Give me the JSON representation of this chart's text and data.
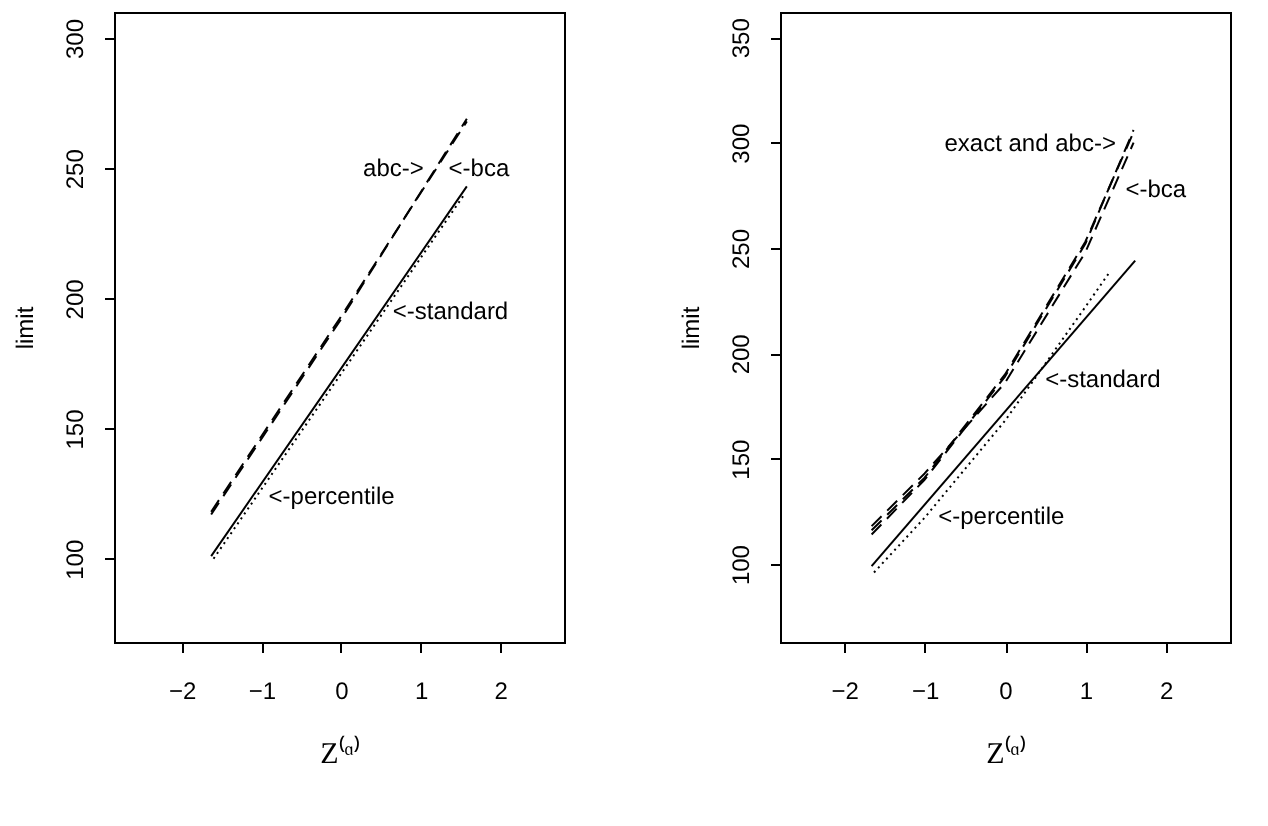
{
  "chart_data": [
    {
      "type": "line",
      "xlabel": "Z⁽ᵅ⁾",
      "ylabel": "limit",
      "xlim": [
        -2.85,
        2.8
      ],
      "ylim": [
        68,
        310
      ],
      "xticks": [
        -2,
        -1,
        0,
        1,
        2
      ],
      "yticks": [
        100,
        150,
        200,
        250,
        300
      ],
      "grid": false,
      "series": [
        {
          "color": "#000000",
          "line_style": "dashed",
          "x": [
            -1.63,
            0,
            1.58
          ],
          "values": [
            117,
            192,
            269
          ]
        },
        {
          "color": "#000000",
          "line_style": "dashed",
          "x": [
            -1.63,
            0,
            1.58
          ],
          "values": [
            118,
            193,
            268
          ]
        },
        {
          "color": "#000000",
          "line_style": "solid",
          "x": [
            -1.63,
            0,
            1.58
          ],
          "values": [
            101,
            173,
            243
          ]
        },
        {
          "color": "#000000",
          "line_style": "dotted",
          "x": [
            -1.6,
            0,
            1.55
          ],
          "values": [
            100,
            171,
            240
          ]
        }
      ],
      "annotations": [
        {
          "text": "abc->",
          "x": 1.19,
          "y": 250
        },
        {
          "text": "<-bca",
          "x": 1.2,
          "y": 250
        },
        {
          "text": "<-standard",
          "x": 0.5,
          "y": 195
        },
        {
          "text": "<-percentile",
          "x": -1.06,
          "y": 124
        }
      ]
    },
    {
      "type": "line",
      "xlabel": "Z⁽ᵅ⁾",
      "ylabel": "limit",
      "xlim": [
        -2.8,
        2.8
      ],
      "ylim": [
        63,
        362
      ],
      "xticks": [
        -2,
        -1,
        0,
        1,
        2
      ],
      "yticks": [
        100,
        150,
        200,
        250,
        300,
        350
      ],
      "grid": false,
      "series": [
        {
          "color": "#000000",
          "line_style": "dashed",
          "x": [
            -1.66,
            -1,
            0,
            1,
            1.6
          ],
          "values": [
            114,
            140,
            189,
            252,
            306
          ]
        },
        {
          "color": "#000000",
          "line_style": "dashed",
          "x": [
            -1.66,
            -1,
            0,
            1,
            1.6
          ],
          "values": [
            116,
            141,
            190,
            253,
            305
          ]
        },
        {
          "color": "#000000",
          "line_style": "dashed",
          "x": [
            -1.66,
            -1,
            0,
            1,
            1.6
          ],
          "values": [
            118,
            143,
            186,
            248,
            300
          ]
        },
        {
          "color": "#000000",
          "line_style": "solid",
          "x": [
            -1.66,
            1.62
          ],
          "values": [
            99,
            244
          ]
        },
        {
          "color": "#000000",
          "line_style": "dotted",
          "x": [
            -1.63,
            -1,
            0,
            1,
            1.31
          ],
          "values": [
            96,
            122,
            168,
            222,
            239
          ]
        }
      ],
      "annotations": [
        {
          "text": "exact and abc->",
          "x": 1.53,
          "y": 300
        },
        {
          "text": "<-bca",
          "x": 1.35,
          "y": 278
        },
        {
          "text": "<-standard",
          "x": 0.35,
          "y": 188
        },
        {
          "text": "<-percentile",
          "x": -0.98,
          "y": 123
        }
      ]
    }
  ]
}
